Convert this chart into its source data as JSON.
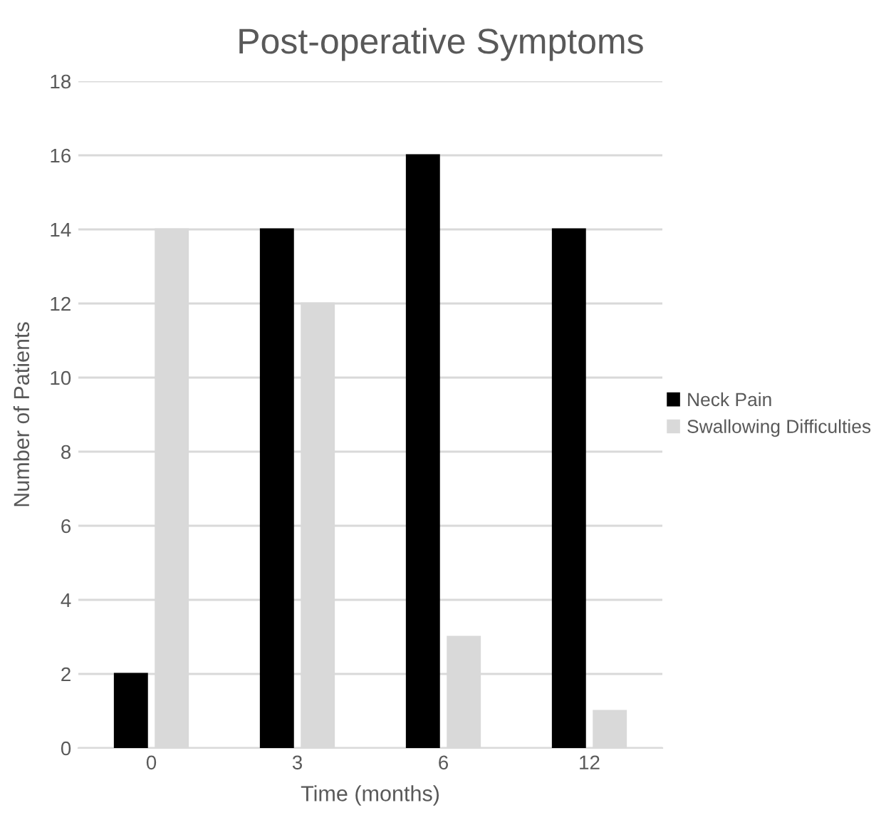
{
  "chart_data": {
    "type": "bar",
    "title": "Post-operative Symptoms",
    "xlabel": "Time (months)",
    "ylabel": "Number of Patients",
    "categories": [
      "0",
      "3",
      "6",
      "12"
    ],
    "series": [
      {
        "name": "Neck Pain",
        "color": "#000000",
        "values": [
          2,
          14,
          16,
          14
        ]
      },
      {
        "name": "Swallowing Difficulties",
        "color": "#d9d9d9",
        "values": [
          14,
          12,
          3,
          1
        ]
      }
    ],
    "ylim": [
      0,
      18
    ],
    "yticks": [
      0,
      2,
      4,
      6,
      8,
      10,
      12,
      14,
      16,
      18
    ],
    "grid": "y",
    "legend": "right"
  }
}
